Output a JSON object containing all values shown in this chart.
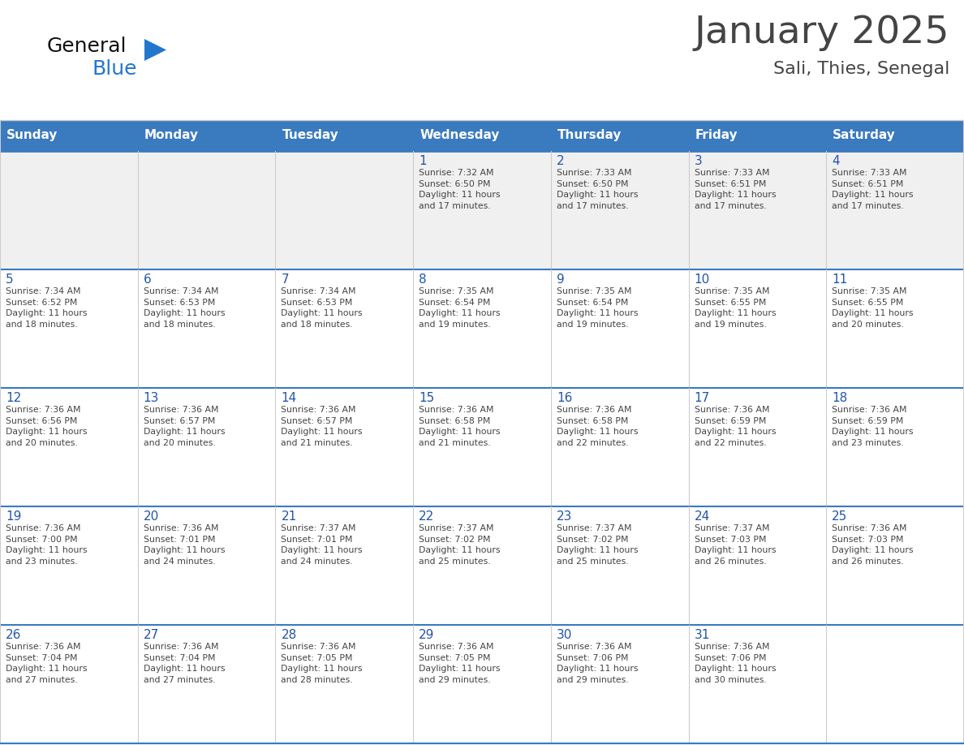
{
  "title": "January 2025",
  "subtitle": "Sali, Thies, Senegal",
  "header_bg": "#3a7abf",
  "header_text_color": "#ffffff",
  "header_font_size": 11,
  "day_names": [
    "Sunday",
    "Monday",
    "Tuesday",
    "Wednesday",
    "Thursday",
    "Friday",
    "Saturday"
  ],
  "title_fontsize": 34,
  "subtitle_fontsize": 16,
  "cell_text_color": "#444444",
  "day_num_color": "#2255aa",
  "bg_color": "#ffffff",
  "row_sep_color": "#3a7abf",
  "col_sep_color": "#cccccc",
  "outer_border_color": "#3a7abf",
  "first_row_bg": "#f0f0f0",
  "logo_general_color": "#111111",
  "logo_blue_color": "#2277cc",
  "logo_triangle_color": "#2277cc",
  "weeks": [
    [
      {
        "day": null,
        "text": ""
      },
      {
        "day": null,
        "text": ""
      },
      {
        "day": null,
        "text": ""
      },
      {
        "day": 1,
        "text": "Sunrise: 7:32 AM\nSunset: 6:50 PM\nDaylight: 11 hours\nand 17 minutes."
      },
      {
        "day": 2,
        "text": "Sunrise: 7:33 AM\nSunset: 6:50 PM\nDaylight: 11 hours\nand 17 minutes."
      },
      {
        "day": 3,
        "text": "Sunrise: 7:33 AM\nSunset: 6:51 PM\nDaylight: 11 hours\nand 17 minutes."
      },
      {
        "day": 4,
        "text": "Sunrise: 7:33 AM\nSunset: 6:51 PM\nDaylight: 11 hours\nand 17 minutes."
      }
    ],
    [
      {
        "day": 5,
        "text": "Sunrise: 7:34 AM\nSunset: 6:52 PM\nDaylight: 11 hours\nand 18 minutes."
      },
      {
        "day": 6,
        "text": "Sunrise: 7:34 AM\nSunset: 6:53 PM\nDaylight: 11 hours\nand 18 minutes."
      },
      {
        "day": 7,
        "text": "Sunrise: 7:34 AM\nSunset: 6:53 PM\nDaylight: 11 hours\nand 18 minutes."
      },
      {
        "day": 8,
        "text": "Sunrise: 7:35 AM\nSunset: 6:54 PM\nDaylight: 11 hours\nand 19 minutes."
      },
      {
        "day": 9,
        "text": "Sunrise: 7:35 AM\nSunset: 6:54 PM\nDaylight: 11 hours\nand 19 minutes."
      },
      {
        "day": 10,
        "text": "Sunrise: 7:35 AM\nSunset: 6:55 PM\nDaylight: 11 hours\nand 19 minutes."
      },
      {
        "day": 11,
        "text": "Sunrise: 7:35 AM\nSunset: 6:55 PM\nDaylight: 11 hours\nand 20 minutes."
      }
    ],
    [
      {
        "day": 12,
        "text": "Sunrise: 7:36 AM\nSunset: 6:56 PM\nDaylight: 11 hours\nand 20 minutes."
      },
      {
        "day": 13,
        "text": "Sunrise: 7:36 AM\nSunset: 6:57 PM\nDaylight: 11 hours\nand 20 minutes."
      },
      {
        "day": 14,
        "text": "Sunrise: 7:36 AM\nSunset: 6:57 PM\nDaylight: 11 hours\nand 21 minutes."
      },
      {
        "day": 15,
        "text": "Sunrise: 7:36 AM\nSunset: 6:58 PM\nDaylight: 11 hours\nand 21 minutes."
      },
      {
        "day": 16,
        "text": "Sunrise: 7:36 AM\nSunset: 6:58 PM\nDaylight: 11 hours\nand 22 minutes."
      },
      {
        "day": 17,
        "text": "Sunrise: 7:36 AM\nSunset: 6:59 PM\nDaylight: 11 hours\nand 22 minutes."
      },
      {
        "day": 18,
        "text": "Sunrise: 7:36 AM\nSunset: 6:59 PM\nDaylight: 11 hours\nand 23 minutes."
      }
    ],
    [
      {
        "day": 19,
        "text": "Sunrise: 7:36 AM\nSunset: 7:00 PM\nDaylight: 11 hours\nand 23 minutes."
      },
      {
        "day": 20,
        "text": "Sunrise: 7:36 AM\nSunset: 7:01 PM\nDaylight: 11 hours\nand 24 minutes."
      },
      {
        "day": 21,
        "text": "Sunrise: 7:37 AM\nSunset: 7:01 PM\nDaylight: 11 hours\nand 24 minutes."
      },
      {
        "day": 22,
        "text": "Sunrise: 7:37 AM\nSunset: 7:02 PM\nDaylight: 11 hours\nand 25 minutes."
      },
      {
        "day": 23,
        "text": "Sunrise: 7:37 AM\nSunset: 7:02 PM\nDaylight: 11 hours\nand 25 minutes."
      },
      {
        "day": 24,
        "text": "Sunrise: 7:37 AM\nSunset: 7:03 PM\nDaylight: 11 hours\nand 26 minutes."
      },
      {
        "day": 25,
        "text": "Sunrise: 7:36 AM\nSunset: 7:03 PM\nDaylight: 11 hours\nand 26 minutes."
      }
    ],
    [
      {
        "day": 26,
        "text": "Sunrise: 7:36 AM\nSunset: 7:04 PM\nDaylight: 11 hours\nand 27 minutes."
      },
      {
        "day": 27,
        "text": "Sunrise: 7:36 AM\nSunset: 7:04 PM\nDaylight: 11 hours\nand 27 minutes."
      },
      {
        "day": 28,
        "text": "Sunrise: 7:36 AM\nSunset: 7:05 PM\nDaylight: 11 hours\nand 28 minutes."
      },
      {
        "day": 29,
        "text": "Sunrise: 7:36 AM\nSunset: 7:05 PM\nDaylight: 11 hours\nand 29 minutes."
      },
      {
        "day": 30,
        "text": "Sunrise: 7:36 AM\nSunset: 7:06 PM\nDaylight: 11 hours\nand 29 minutes."
      },
      {
        "day": 31,
        "text": "Sunrise: 7:36 AM\nSunset: 7:06 PM\nDaylight: 11 hours\nand 30 minutes."
      },
      {
        "day": null,
        "text": ""
      }
    ]
  ]
}
